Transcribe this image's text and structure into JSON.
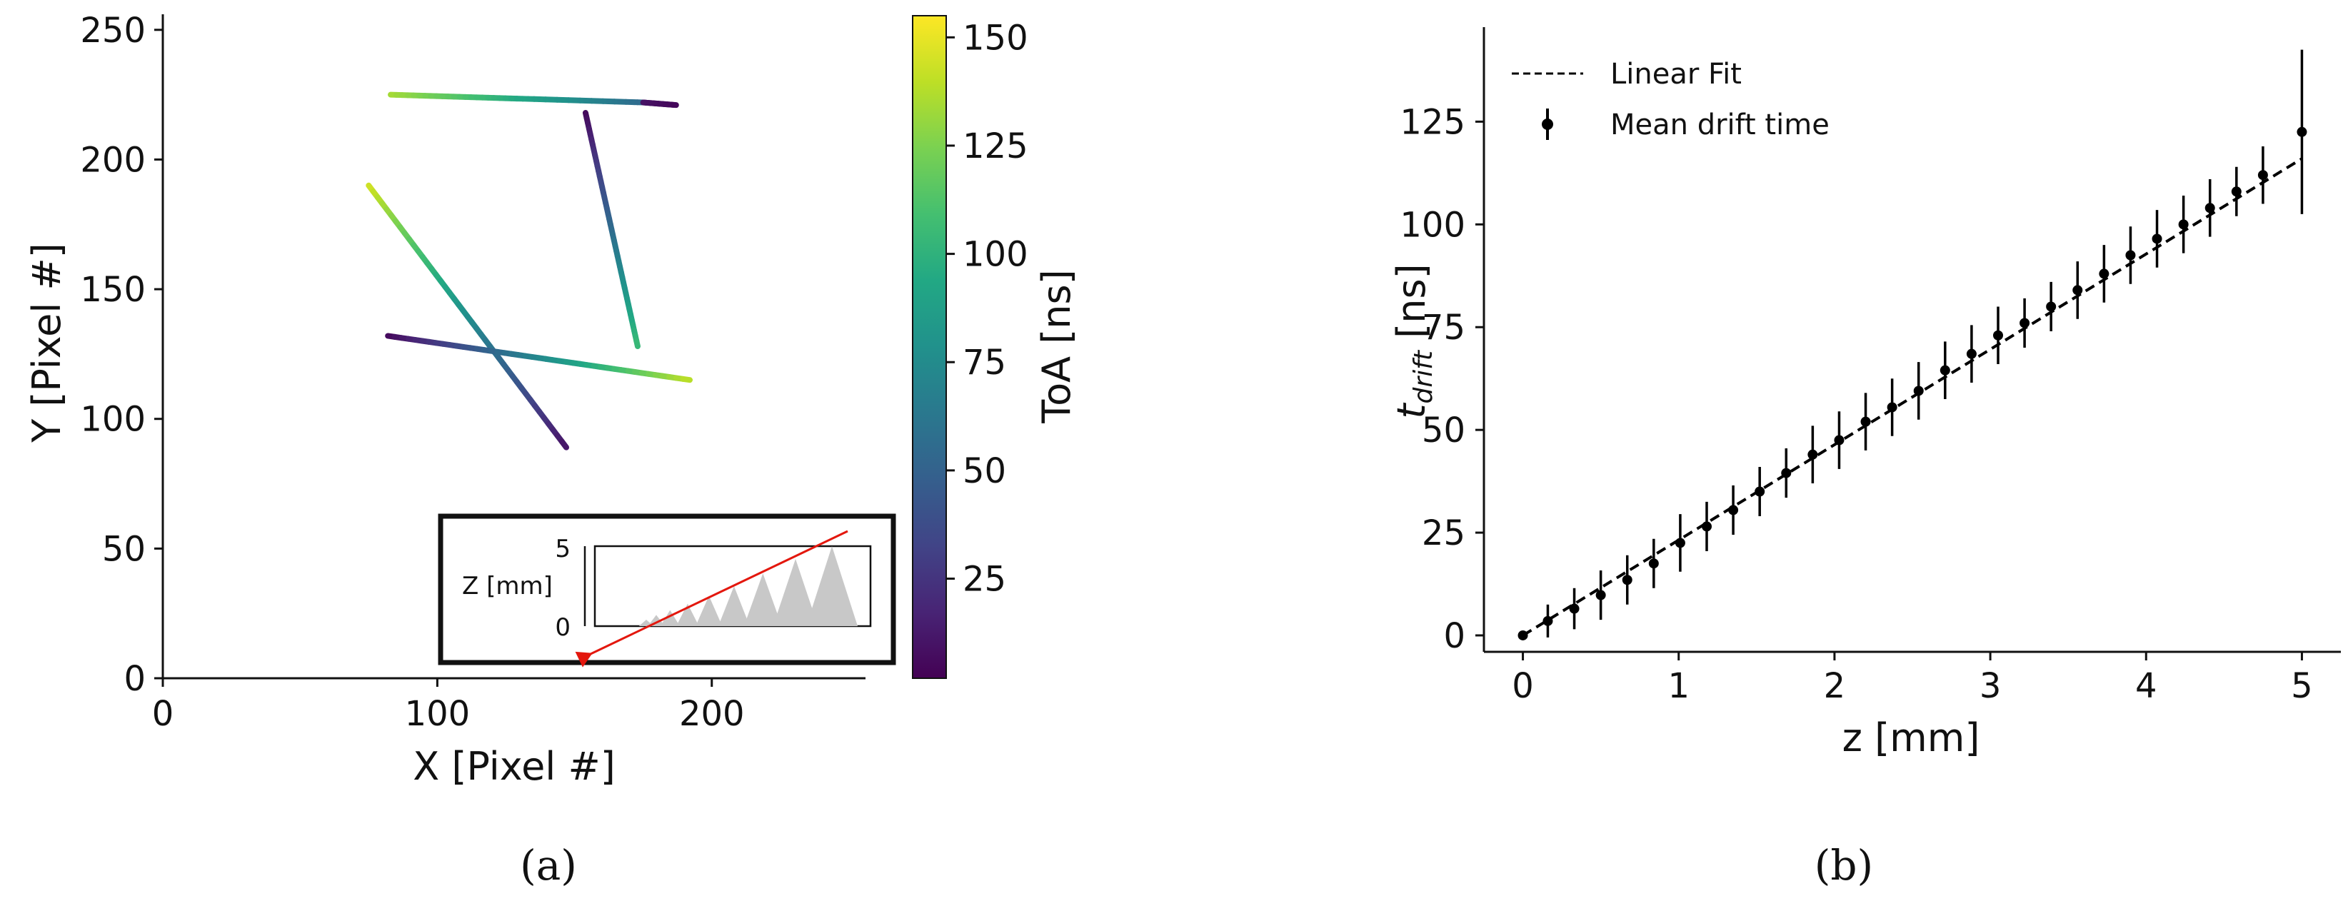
{
  "chart_data": [
    {
      "panel": "(a)",
      "type": "scatter",
      "xlabel": "X [Pixel #]",
      "ylabel": "Y [Pixel #]",
      "xlim": [
        0,
        256
      ],
      "ylim": [
        0,
        256
      ],
      "xticks": [
        0,
        100,
        200
      ],
      "yticks": [
        0,
        50,
        100,
        150,
        200,
        250
      ],
      "colorbar": {
        "label": "ToA [ns]",
        "range": [
          2,
          155
        ],
        "ticks": [
          25,
          50,
          75,
          100,
          125,
          150
        ],
        "colormap": "viridis"
      },
      "tracks": [
        {
          "start": [
            83,
            225
          ],
          "end": [
            175,
            222
          ],
          "toa_start": 135,
          "toa_end": 55
        },
        {
          "start": [
            175,
            222
          ],
          "end": [
            187,
            221
          ],
          "toa_start": 10,
          "toa_end": 5
        },
        {
          "start": [
            154,
            218
          ],
          "end": [
            173,
            128
          ],
          "toa_start": 5,
          "toa_end": 105
        },
        {
          "start": [
            75,
            190
          ],
          "end": [
            147,
            89
          ],
          "toa_start": 145,
          "toa_end": 10
        },
        {
          "start": [
            82,
            132
          ],
          "end": [
            192,
            115
          ],
          "toa_start": 5,
          "toa_end": 140
        }
      ],
      "inset": {
        "ylabel": "Z [mm]",
        "yticks": [
          0,
          5
        ]
      }
    },
    {
      "panel": "(b)",
      "type": "line",
      "xlabel": "z [mm]",
      "ylabel_main": "t",
      "ylabel_sub": "drift",
      "ylabel_unit": " [ns]",
      "xlim": [
        -0.25,
        5.25
      ],
      "ylim": [
        -4,
        148
      ],
      "xticks": [
        0,
        1,
        2,
        3,
        4,
        5
      ],
      "yticks": [
        0,
        25,
        50,
        75,
        100,
        125
      ],
      "legend": "top-left",
      "series": [
        {
          "name": "Linear Fit",
          "style": "dashed",
          "x": [
            0,
            5
          ],
          "y": [
            0,
            116
          ]
        },
        {
          "name": "Mean drift time",
          "style": "errorbar",
          "x": [
            0,
            0.16,
            0.33,
            0.5,
            0.67,
            0.84,
            1.01,
            1.18,
            1.35,
            1.52,
            1.69,
            1.86,
            2.03,
            2.2,
            2.37,
            2.54,
            2.71,
            2.88,
            3.05,
            3.22,
            3.39,
            3.56,
            3.73,
            3.9,
            4.07,
            4.24,
            4.41,
            4.58,
            4.75,
            5.0
          ],
          "y": [
            0,
            3.5,
            6.5,
            9.8,
            13.5,
            17.5,
            22.5,
            26.5,
            30.5,
            35,
            39.5,
            44,
            47.5,
            52,
            55.5,
            59.5,
            64.5,
            68.5,
            73,
            76,
            80,
            84,
            88,
            92.5,
            96.5,
            100,
            104,
            108,
            112,
            122.5
          ],
          "yerr": [
            1,
            4,
            5,
            6,
            6,
            6,
            7,
            6,
            6,
            6,
            6,
            7,
            7,
            7,
            7,
            7,
            7,
            7,
            7,
            6,
            6,
            7,
            7,
            7,
            7,
            7,
            7,
            6,
            7,
            20
          ]
        }
      ]
    }
  ],
  "labels": {
    "a": "(a)",
    "b": "(b)"
  },
  "colors": {
    "fit": "#000000",
    "points": "#000000",
    "inset_arrow": "#e3170d",
    "inset_fill": "#c8c8c8"
  }
}
